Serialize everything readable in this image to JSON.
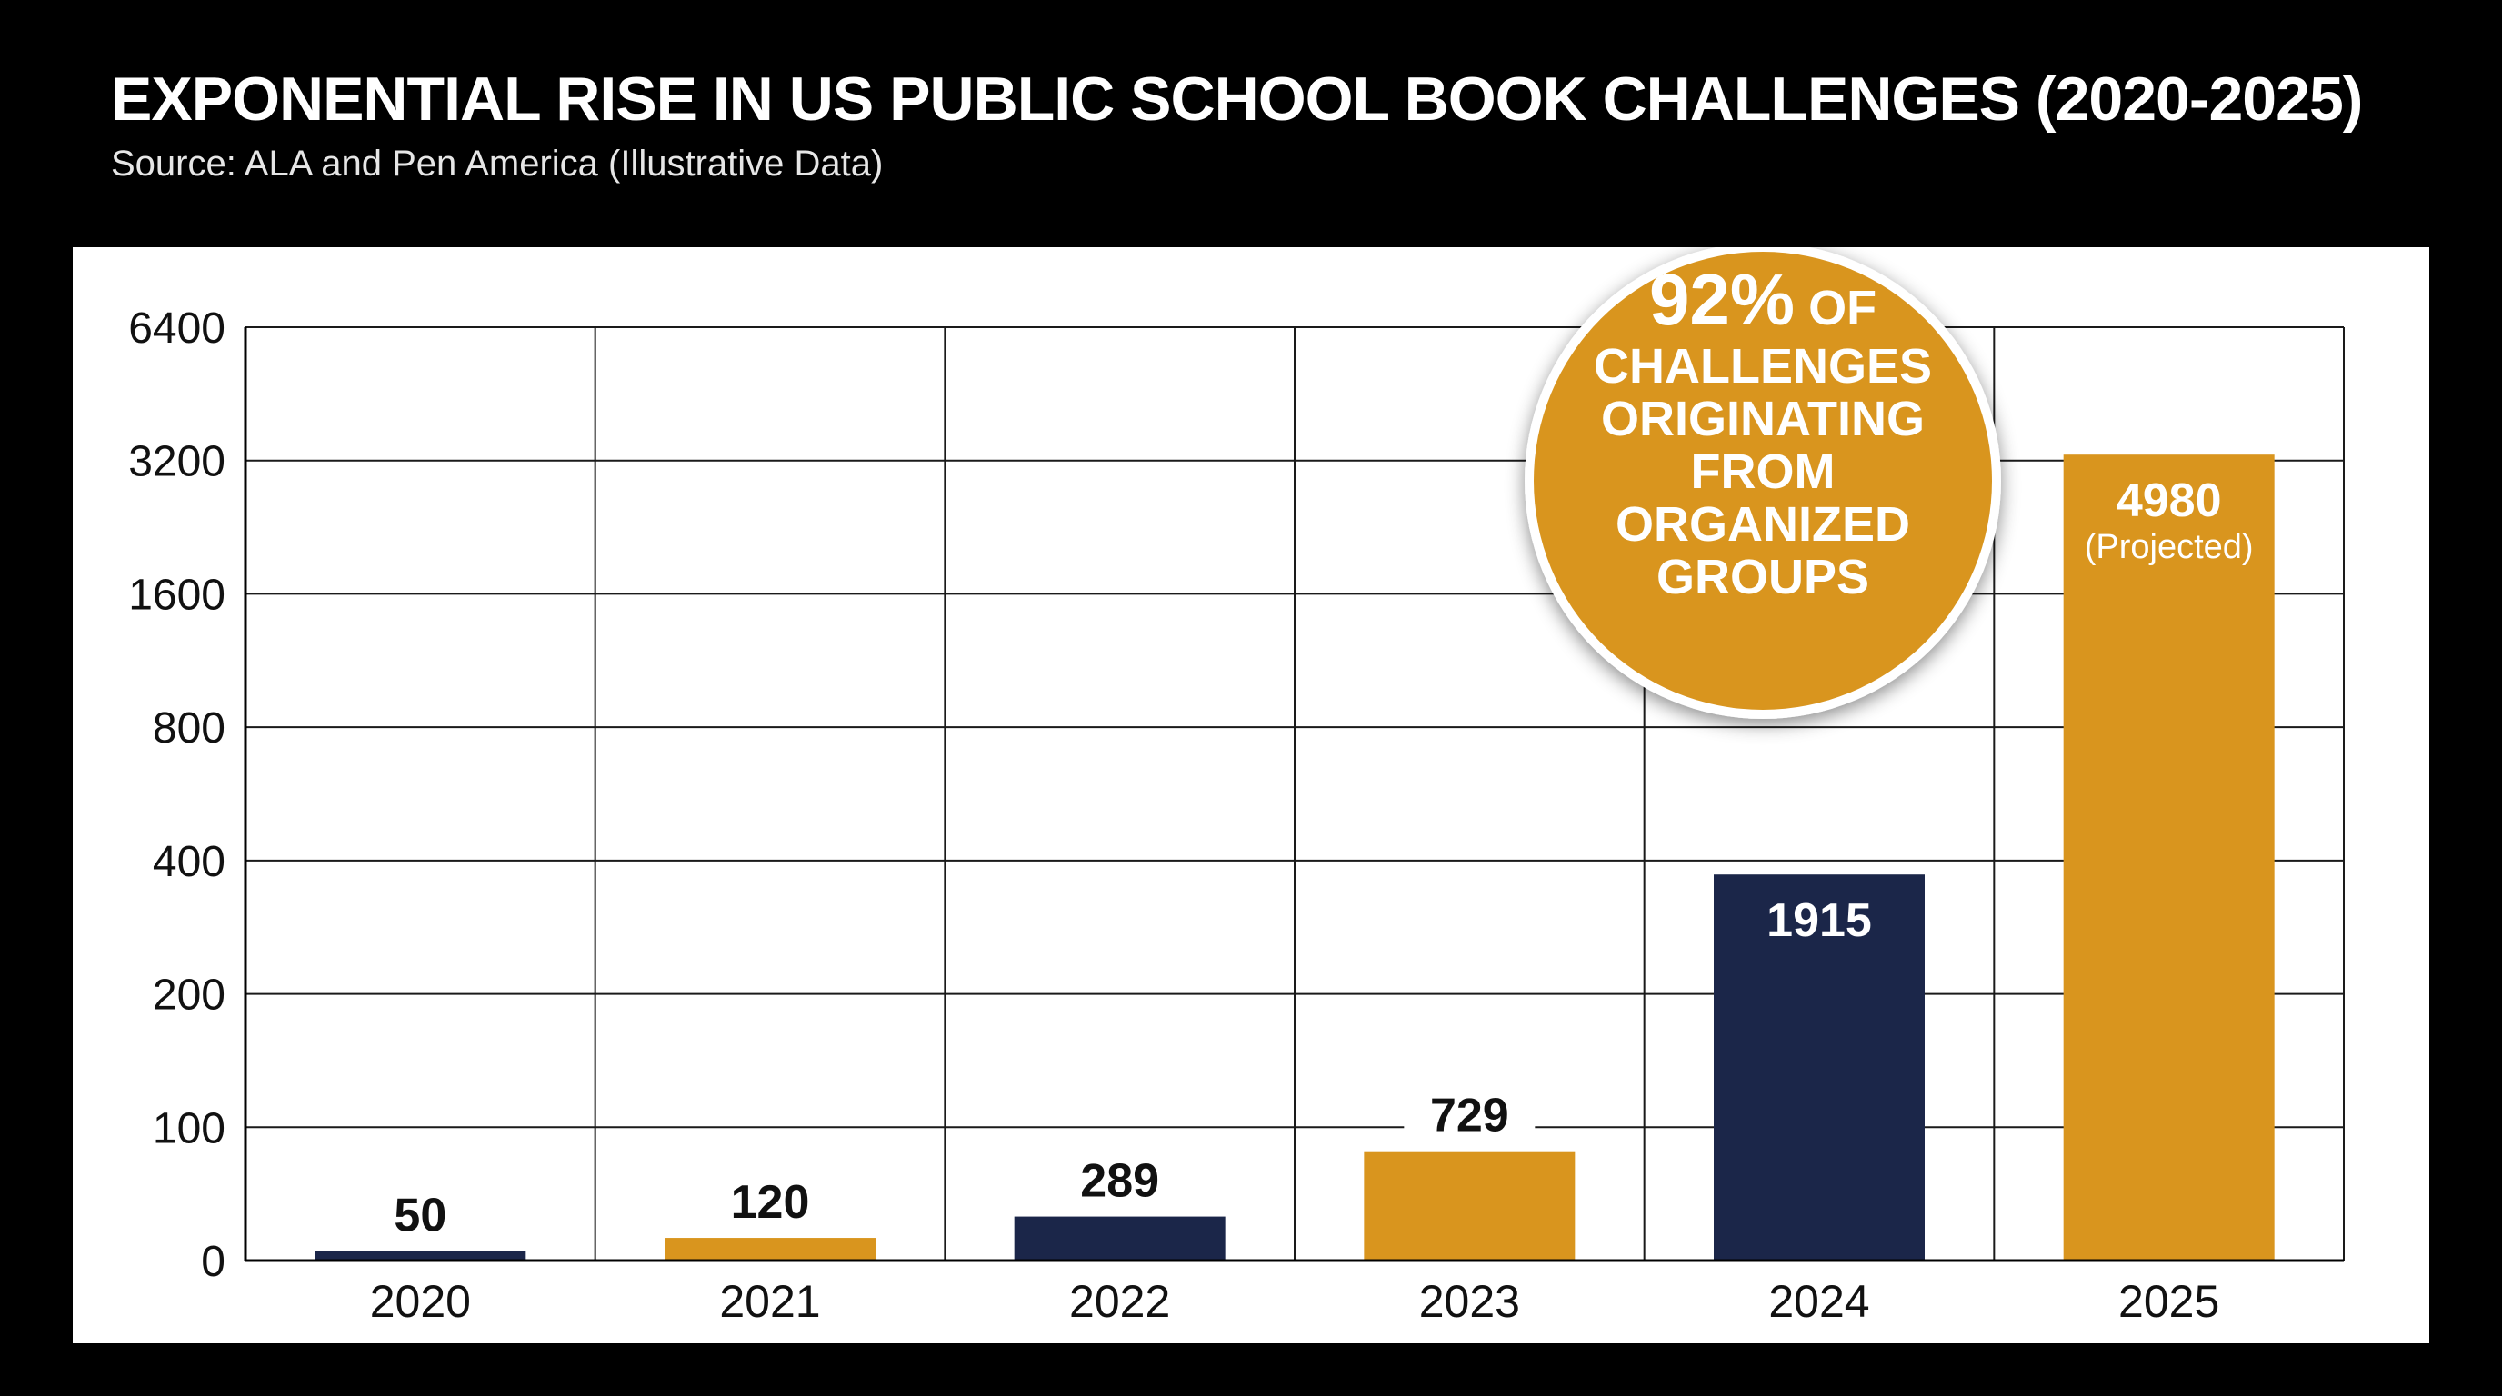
{
  "header": {
    "title": "EXPONENTIAL RISE IN US PUBLIC SCHOOL BOOK CHALLENGES (2020-2025)",
    "subtitle": "Source: ALA and Pen America (Illustrative Data)"
  },
  "callout": {
    "lines": [
      {
        "big": "92%",
        "small": " OF"
      },
      {
        "big": "",
        "small": "CHALLENGES"
      },
      {
        "big": "",
        "small": "ORIGINATING"
      },
      {
        "big": "",
        "small": "FROM"
      },
      {
        "big": "",
        "small": "ORGANIZED"
      },
      {
        "big": "",
        "small": "GROUPS"
      }
    ]
  },
  "colors": {
    "navy": "#1b2649",
    "gold": "#d9951e",
    "grid": "#1a1a1a",
    "background": "#000000"
  },
  "chart_data": {
    "type": "bar",
    "title": "EXPONENTIAL RISE IN US PUBLIC SCHOOL BOOK CHALLENGES (2020-2025)",
    "subtitle": "Source: ALA and Pen America (Illustrative Data)",
    "xlabel": "",
    "ylabel": "",
    "scale": "log2 (ticks double each step)",
    "yticks": [
      0,
      100,
      200,
      400,
      800,
      1600,
      3200,
      6400
    ],
    "ytick_labels": [
      "0",
      "100",
      "200",
      "400",
      "800",
      "1600",
      "3200",
      "6400"
    ],
    "categories": [
      "2020",
      "2021",
      "2022",
      "2023",
      "2024",
      "2025"
    ],
    "values": [
      50,
      120,
      289,
      729,
      1915,
      4980
    ],
    "bar_heights_on_axis": [
      7,
      17,
      33,
      82,
      372,
      3300
    ],
    "data_labels": [
      "50",
      "120",
      "289",
      "729",
      "1915",
      "4980"
    ],
    "notes": [
      "",
      "",
      "",
      "",
      "",
      "(Projected)"
    ],
    "bar_colors": [
      "navy",
      "gold",
      "navy",
      "gold",
      "navy",
      "gold"
    ],
    "label_positions": [
      "above",
      "above",
      "above",
      "above",
      "inside",
      "inside"
    ],
    "grid": true,
    "legend": "none"
  }
}
